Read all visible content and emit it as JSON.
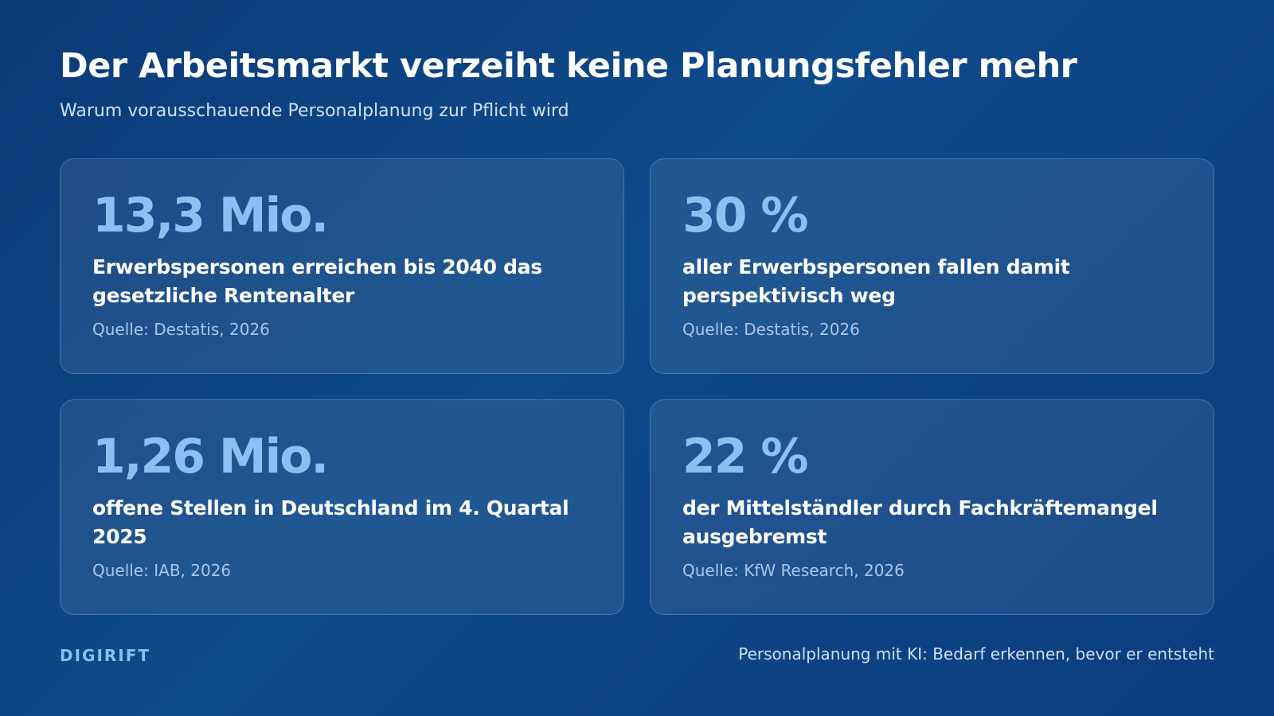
{
  "header": {
    "title": "Der Arbeitsmarkt verzeiht keine Planungsfehler mehr",
    "subtitle": "Warum vorausschauende Personalplanung zur Pflicht wird"
  },
  "cards": [
    {
      "value": "13,3 Mio.",
      "description": "Erwerbspersonen erreichen bis 2040 das gesetzliche Rentenalter",
      "source": "Quelle: Destatis, 2026"
    },
    {
      "value": "30 %",
      "description": "aller Erwerbspersonen fallen damit perspektivisch weg",
      "source": "Quelle: Destatis, 2026"
    },
    {
      "value": "1,26 Mio.",
      "description": "offene Stellen in Deutschland im 4. Quartal 2025",
      "source": "Quelle: IAB, 2026"
    },
    {
      "value": "22 %",
      "description": "der Mittelständler durch Fachkräftemangel ausgebremst",
      "source": "Quelle: KfW Research, 2026"
    }
  ],
  "footer": {
    "brand": "DIGIRIFT",
    "tagline": "Personalplanung mit KI: Bedarf erkennen, bevor er entsteht"
  },
  "colors": {
    "background": "#0f4a8a",
    "accent": "#8cc0f2",
    "text": "#ffffff",
    "muted": "#a9c6ea"
  }
}
